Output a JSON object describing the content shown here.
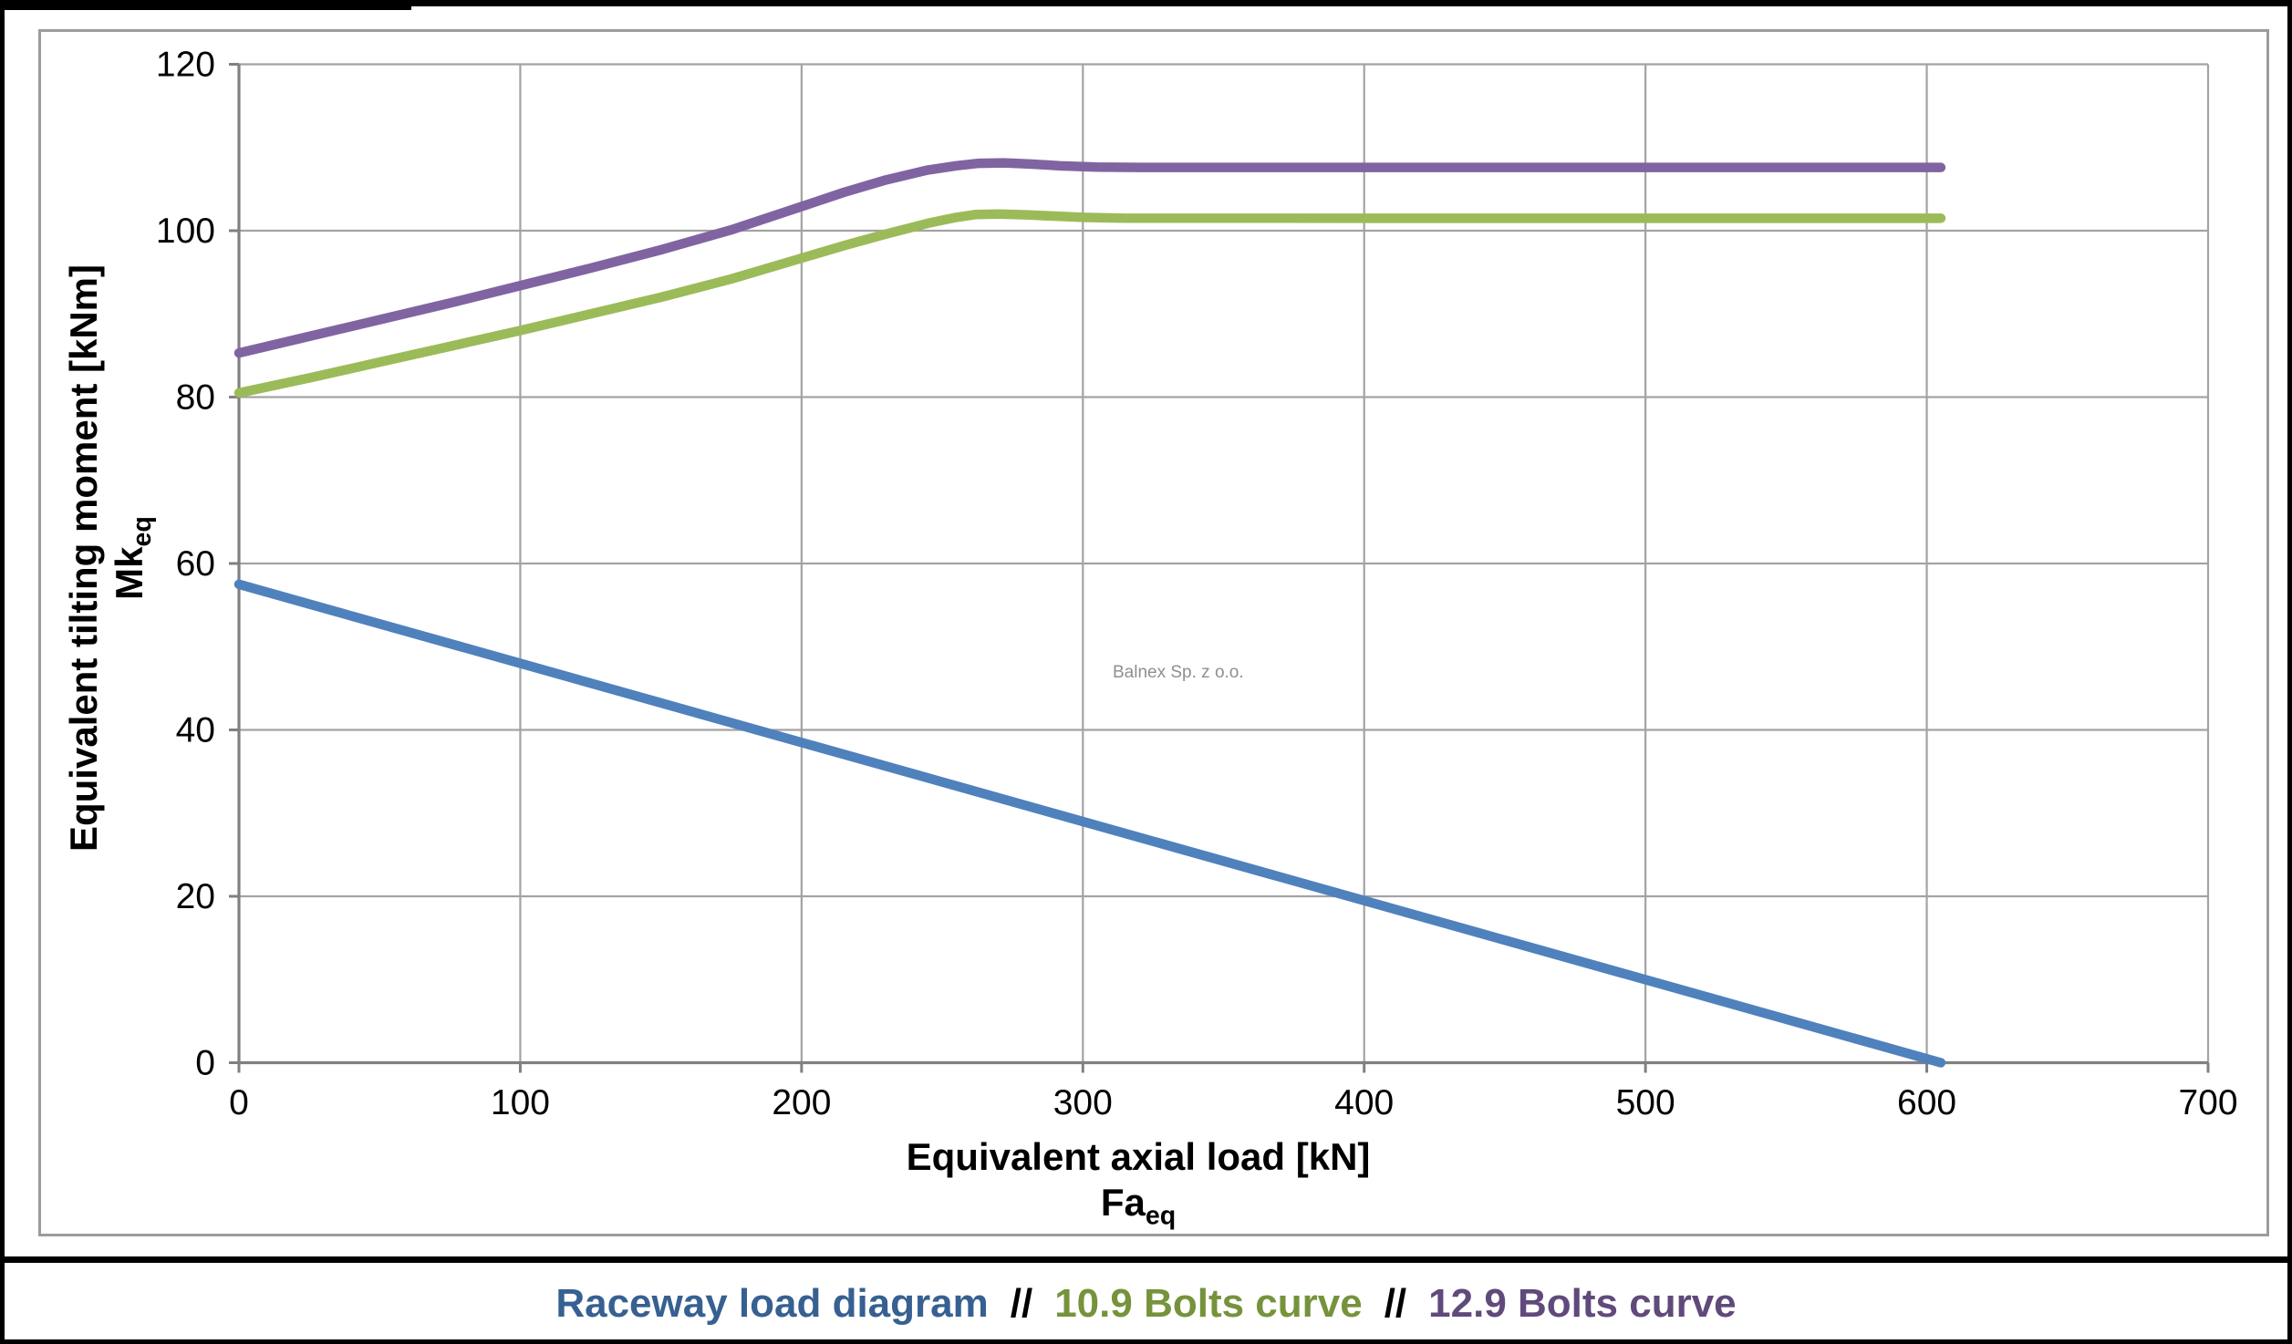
{
  "page": {
    "watermark": "Balnex Sp. z o.o."
  },
  "y_axis_title": {
    "line1": "Equivalent tilting moment [kNm]",
    "symbol": "Mk",
    "symbol_sub": "eq"
  },
  "x_axis_title": {
    "line1": "Equivalent axial load [kN]",
    "symbol": "Fa",
    "symbol_sub": "eq"
  },
  "legend": {
    "separator": "//",
    "items": [
      {
        "label": "Raceway load diagram",
        "color": "#376092"
      },
      {
        "label": "10.9 Bolts curve",
        "color": "#76933C"
      },
      {
        "label": "12.9 Bolts curve",
        "color": "#604A7B"
      }
    ]
  },
  "chart_data": {
    "type": "line",
    "title": "",
    "xlabel": "Equivalent axial load [kN] Faeq",
    "ylabel": "Equivalent tilting moment [kNm] Mkeq",
    "grid": true,
    "legend_position": "bottom",
    "x_axis": {
      "min": 0,
      "max": 700,
      "ticks": [
        0,
        100,
        200,
        300,
        400,
        500,
        600,
        700
      ]
    },
    "y_axis": {
      "min": 0,
      "max": 120,
      "ticks": [
        0,
        20,
        40,
        60,
        80,
        100,
        120
      ]
    },
    "colors": {
      "gridline": "#a3a3a3",
      "axis": "#808080",
      "tick_label": "#000000"
    },
    "series": [
      {
        "name": "12.9 Bolts curve",
        "color": "#8064A2",
        "points": [
          [
            0,
            85.3
          ],
          [
            25,
            87.3
          ],
          [
            50,
            89.3
          ],
          [
            75,
            91.3
          ],
          [
            100,
            93.4
          ],
          [
            125,
            95.5
          ],
          [
            150,
            97.7
          ],
          [
            175,
            100.1
          ],
          [
            200,
            102.9
          ],
          [
            215,
            104.6
          ],
          [
            230,
            106.1
          ],
          [
            245,
            107.3
          ],
          [
            255,
            107.8
          ],
          [
            263,
            108.1
          ],
          [
            272,
            108.15
          ],
          [
            282,
            108.0
          ],
          [
            292,
            107.8
          ],
          [
            305,
            107.65
          ],
          [
            320,
            107.6
          ],
          [
            400,
            107.6
          ],
          [
            500,
            107.6
          ],
          [
            605,
            107.6
          ]
        ]
      },
      {
        "name": "10.9 Bolts curve",
        "color": "#9BBB59",
        "points": [
          [
            0,
            80.5
          ],
          [
            25,
            82.3
          ],
          [
            50,
            84.2
          ],
          [
            75,
            86.1
          ],
          [
            100,
            88.0
          ],
          [
            125,
            90.0
          ],
          [
            150,
            92.0
          ],
          [
            175,
            94.2
          ],
          [
            200,
            96.7
          ],
          [
            215,
            98.2
          ],
          [
            230,
            99.6
          ],
          [
            245,
            100.9
          ],
          [
            255,
            101.6
          ],
          [
            262,
            101.95
          ],
          [
            270,
            102.0
          ],
          [
            280,
            101.9
          ],
          [
            290,
            101.75
          ],
          [
            300,
            101.6
          ],
          [
            315,
            101.5
          ],
          [
            400,
            101.5
          ],
          [
            500,
            101.5
          ],
          [
            605,
            101.5
          ]
        ]
      },
      {
        "name": "Raceway load diagram",
        "color": "#4F81BD",
        "points": [
          [
            0,
            57.5
          ],
          [
            605,
            0
          ]
        ]
      }
    ]
  }
}
